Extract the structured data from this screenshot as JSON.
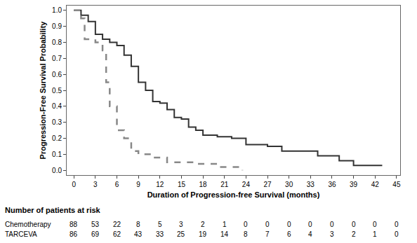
{
  "chart_data": {
    "type": "line",
    "x_label": "Duration of Progression-free Survival (months)",
    "y_label": "Progression-Free Survival Probability",
    "line_shape": "step",
    "series": [
      {
        "name": "TARCEVA",
        "color": "#333333",
        "line_style": "solid",
        "x": [
          0,
          1,
          2,
          3,
          4,
          5,
          6,
          7,
          8,
          9,
          10,
          11,
          12,
          13,
          14,
          15,
          16,
          17,
          18,
          20,
          22,
          24,
          27,
          29,
          32,
          34,
          37,
          39,
          43
        ],
        "values": [
          1.0,
          0.97,
          0.93,
          0.85,
          0.82,
          0.8,
          0.78,
          0.72,
          0.65,
          0.55,
          0.5,
          0.43,
          0.42,
          0.38,
          0.33,
          0.32,
          0.27,
          0.25,
          0.22,
          0.21,
          0.2,
          0.16,
          0.15,
          0.12,
          0.12,
          0.09,
          0.06,
          0.03,
          0.03
        ]
      },
      {
        "name": "Chemotherapy",
        "color": "#888888",
        "line_style": "dash",
        "x": [
          0,
          1,
          1.5,
          3,
          4,
          4.5,
          5,
          6,
          7,
          8,
          9,
          11,
          13,
          17,
          20,
          23,
          23.5
        ],
        "values": [
          1.0,
          0.95,
          0.82,
          0.8,
          0.75,
          0.55,
          0.4,
          0.25,
          0.2,
          0.12,
          0.1,
          0.08,
          0.05,
          0.04,
          0.02,
          0.02,
          0.0
        ]
      }
    ],
    "xlim": [
      -1,
      45.5
    ],
    "xticks": [
      0,
      3,
      6,
      9,
      12,
      15,
      18,
      21,
      24,
      27,
      30,
      33,
      36,
      39,
      42,
      45
    ],
    "ylim": [
      -0.03,
      1.03
    ],
    "yticks": [
      {
        "value": 0,
        "label": "0.0"
      },
      {
        "value": 0.1,
        "label": "0.1"
      },
      {
        "value": 0.2,
        "label": "0.2"
      },
      {
        "value": 0.3,
        "label": "0.3"
      },
      {
        "value": 0.4,
        "label": "0.4"
      },
      {
        "value": 0.5,
        "label": "0.5"
      },
      {
        "value": 0.6,
        "label": "0.6"
      },
      {
        "value": 0.7,
        "label": "0.7"
      },
      {
        "value": 0.8,
        "label": "0.8"
      },
      {
        "value": 0.9,
        "label": "0.9"
      },
      {
        "value": 1,
        "label": "1.0"
      }
    ],
    "grid": false,
    "at_risk": {
      "title": "Number of patients at risk",
      "times": [
        0,
        3,
        6,
        9,
        12,
        15,
        18,
        21,
        24,
        27,
        30,
        33,
        36,
        39,
        42,
        45
      ],
      "rows": [
        {
          "name": "Chemotherapy",
          "values": [
            88,
            53,
            22,
            8,
            5,
            3,
            2,
            1,
            0,
            0,
            0,
            0,
            0,
            0,
            0,
            0
          ]
        },
        {
          "name": "TARCEVA",
          "values": [
            86,
            69,
            62,
            43,
            33,
            25,
            19,
            14,
            8,
            7,
            6,
            4,
            3,
            2,
            1,
            0
          ]
        }
      ]
    }
  }
}
